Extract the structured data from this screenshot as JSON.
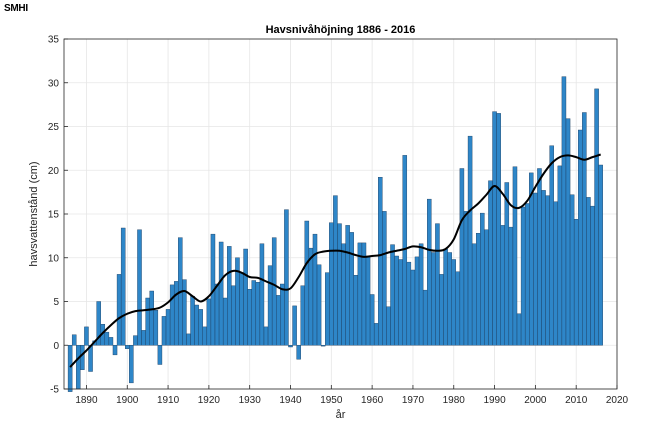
{
  "logo_text": "SMHI",
  "chart_data": {
    "type": "bar",
    "title": "Havsnivåhöjning 1886 - 2016",
    "xlabel": "år",
    "ylabel": "havsvattenstånd (cm)",
    "xlim": [
      1884.5,
      2020
    ],
    "ylim": [
      -5,
      35
    ],
    "xticks": [
      1890,
      1900,
      1910,
      1920,
      1930,
      1940,
      1950,
      1960,
      1970,
      1980,
      1990,
      2000,
      2010,
      2020
    ],
    "yticks": [
      -5,
      0,
      5,
      10,
      15,
      20,
      25,
      30,
      35
    ],
    "grid": true,
    "bar_color": "#2e86c8",
    "line_color": "#000000",
    "x": [
      1886,
      1887,
      1888,
      1889,
      1890,
      1891,
      1892,
      1893,
      1894,
      1895,
      1896,
      1897,
      1898,
      1899,
      1900,
      1901,
      1902,
      1903,
      1904,
      1905,
      1906,
      1907,
      1908,
      1909,
      1910,
      1911,
      1912,
      1913,
      1914,
      1915,
      1916,
      1917,
      1918,
      1919,
      1920,
      1921,
      1922,
      1923,
      1924,
      1925,
      1926,
      1927,
      1928,
      1929,
      1930,
      1931,
      1932,
      1933,
      1934,
      1935,
      1936,
      1937,
      1938,
      1939,
      1940,
      1941,
      1942,
      1943,
      1944,
      1945,
      1946,
      1947,
      1948,
      1949,
      1950,
      1951,
      1952,
      1953,
      1954,
      1955,
      1956,
      1957,
      1958,
      1959,
      1960,
      1961,
      1962,
      1963,
      1964,
      1965,
      1966,
      1967,
      1968,
      1969,
      1970,
      1971,
      1972,
      1973,
      1974,
      1975,
      1976,
      1977,
      1978,
      1979,
      1980,
      1981,
      1982,
      1983,
      1984,
      1985,
      1986,
      1987,
      1988,
      1989,
      1990,
      1991,
      1992,
      1993,
      1994,
      1995,
      1996,
      1997,
      1998,
      1999,
      2000,
      2001,
      2002,
      2003,
      2004,
      2005,
      2006,
      2007,
      2008,
      2009,
      2010,
      2011,
      2012,
      2013,
      2014,
      2015,
      2016
    ],
    "values": [
      -5.3,
      1.2,
      -5.0,
      -2.8,
      2.1,
      -3.0,
      0.5,
      5.0,
      2.4,
      1.5,
      0.9,
      -1.1,
      8.1,
      13.4,
      -0.4,
      -4.3,
      1.1,
      13.2,
      1.7,
      5.4,
      6.2,
      4.0,
      -2.2,
      3.3,
      4.1,
      6.9,
      7.3,
      12.3,
      7.5,
      1.3,
      5.6,
      4.6,
      4.1,
      2.1,
      5.3,
      12.7,
      7.0,
      11.8,
      5.4,
      11.3,
      6.8,
      10.0,
      8.3,
      11.0,
      6.4,
      7.4,
      7.2,
      11.6,
      2.1,
      9.1,
      12.3,
      5.7,
      7.0,
      15.5,
      -0.2,
      4.5,
      -1.6,
      6.8,
      14.2,
      11.1,
      12.7,
      9.2,
      -0.1,
      8.3,
      14.0,
      17.1,
      13.9,
      11.6,
      13.7,
      12.9,
      8.0,
      11.7,
      11.7,
      10.2,
      5.8,
      2.5,
      19.2,
      15.3,
      4.4,
      11.5,
      10.2,
      9.8,
      21.7,
      9.5,
      8.6,
      10.1,
      11.6,
      6.3,
      16.7,
      10.6,
      13.9,
      8.1,
      11.0,
      10.6,
      9.8,
      8.4,
      20.2,
      15.3,
      23.9,
      11.6,
      12.8,
      15.1,
      13.2,
      18.8,
      26.7,
      26.5,
      13.7,
      18.6,
      13.5,
      20.4,
      3.6,
      15.8,
      16.2,
      19.7,
      17.4,
      20.2,
      17.7,
      17.1,
      22.8,
      16.4,
      20.5,
      30.7,
      25.9,
      17.2,
      14.4,
      24.6,
      26.6,
      16.9,
      15.9,
      29.3,
      20.6
    ],
    "trend": {
      "x": [
        1886,
        1888,
        1890,
        1892,
        1894,
        1896,
        1898,
        1900,
        1902,
        1904,
        1906,
        1908,
        1910,
        1912,
        1914,
        1916,
        1918,
        1920,
        1922,
        1924,
        1926,
        1928,
        1930,
        1932,
        1934,
        1936,
        1938,
        1940,
        1942,
        1944,
        1946,
        1948,
        1950,
        1952,
        1954,
        1956,
        1958,
        1960,
        1962,
        1964,
        1966,
        1968,
        1970,
        1972,
        1974,
        1976,
        1978,
        1980,
        1982,
        1984,
        1986,
        1988,
        1990,
        1992,
        1994,
        1996,
        1998,
        2000,
        2002,
        2004,
        2006,
        2008,
        2010,
        2012,
        2014,
        2016
      ],
      "y": [
        -2.5,
        -1.5,
        -0.6,
        0.4,
        1.4,
        2.3,
        3.1,
        3.6,
        3.9,
        4.0,
        4.1,
        4.3,
        4.9,
        5.8,
        6.2,
        5.6,
        5.0,
        5.6,
        6.8,
        8.0,
        8.5,
        8.3,
        7.8,
        7.7,
        7.3,
        6.9,
        6.4,
        6.5,
        7.8,
        9.4,
        10.4,
        10.7,
        10.8,
        10.8,
        10.6,
        10.3,
        10.1,
        10.2,
        10.3,
        10.6,
        10.8,
        11.0,
        11.3,
        11.2,
        10.9,
        10.8,
        11.0,
        12.1,
        14.3,
        15.4,
        16.2,
        17.2,
        18.2,
        17.3,
        16.0,
        15.7,
        16.5,
        18.1,
        19.6,
        20.8,
        21.5,
        21.7,
        21.5,
        21.2,
        21.5,
        21.8
      ]
    }
  }
}
